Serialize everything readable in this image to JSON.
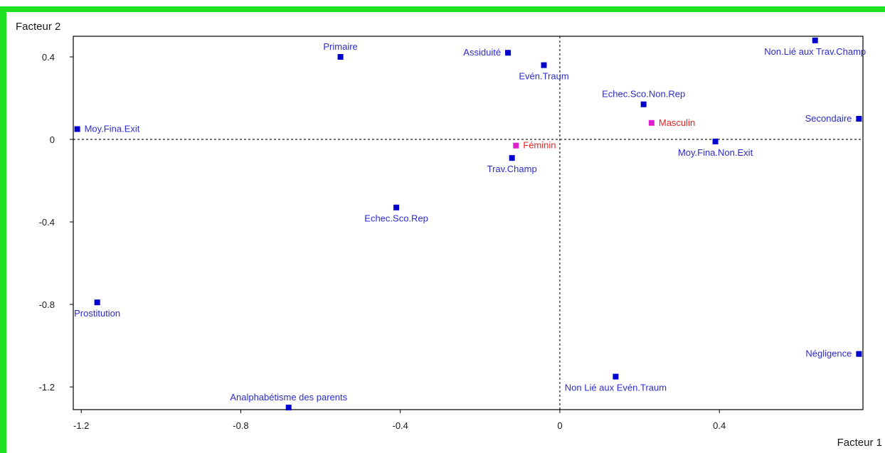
{
  "colors": {
    "frame": "#1ee01e",
    "axis": "#000000",
    "point_active": "#0000cc",
    "label_active": "#2b2bd0",
    "point_supplementary": "#e020d0",
    "label_supplementary": "#ee2222"
  },
  "chart_data": {
    "type": "scatter",
    "xlabel": "Facteur 1",
    "ylabel": "Facteur 2",
    "xlim": [
      -1.22,
      0.76
    ],
    "ylim": [
      -1.31,
      0.5
    ],
    "xticks": [
      "-1.2",
      "-0.8",
      "-0.4",
      "0",
      "0.4"
    ],
    "xtick_values": [
      -1.2,
      -0.8,
      -0.4,
      0,
      0.4
    ],
    "yticks": [
      "0.4",
      "0",
      "-0.4",
      "-0.8",
      "-1.2"
    ],
    "ytick_values": [
      0.4,
      0,
      -0.4,
      -0.8,
      -1.2
    ],
    "reference_lines": "dashed lines at x=0 and y=0",
    "points": [
      {
        "label": "Primaire",
        "x": -0.55,
        "y": 0.4,
        "group": "active",
        "anchor": "above"
      },
      {
        "label": "Assiduité",
        "x": -0.13,
        "y": 0.42,
        "group": "active",
        "anchor": "left"
      },
      {
        "label": "Evén.Traum",
        "x": -0.04,
        "y": 0.36,
        "group": "active",
        "anchor": "below"
      },
      {
        "label": "Non.Lié aux Trav.Champ",
        "x": 0.64,
        "y": 0.48,
        "group": "active",
        "anchor": "below"
      },
      {
        "label": "Echec.Sco.Non.Rep",
        "x": 0.21,
        "y": 0.17,
        "group": "active",
        "anchor": "above"
      },
      {
        "label": "Masculin",
        "x": 0.23,
        "y": 0.08,
        "group": "supplementary",
        "anchor": "right"
      },
      {
        "label": "Secondaire",
        "x": 0.75,
        "y": 0.1,
        "group": "active",
        "anchor": "left"
      },
      {
        "label": "Moy.Fina.Exit",
        "x": -1.21,
        "y": 0.05,
        "group": "active",
        "anchor": "right"
      },
      {
        "label": "Moy.Fina.Non.Exit",
        "x": 0.39,
        "y": -0.01,
        "group": "active",
        "anchor": "below"
      },
      {
        "label": "Féminin",
        "x": -0.11,
        "y": -0.03,
        "group": "supplementary",
        "anchor": "right"
      },
      {
        "label": "Trav.Champ",
        "x": -0.12,
        "y": -0.09,
        "group": "active",
        "anchor": "below"
      },
      {
        "label": "Echec.Sco.Rep",
        "x": -0.41,
        "y": -0.33,
        "group": "active",
        "anchor": "below"
      },
      {
        "label": "Prostitution",
        "x": -1.16,
        "y": -0.79,
        "group": "active",
        "anchor": "below"
      },
      {
        "label": "Négligence",
        "x": 0.75,
        "y": -1.04,
        "group": "active",
        "anchor": "left"
      },
      {
        "label": "Non Lié aux Evén.Traum",
        "x": 0.14,
        "y": -1.15,
        "group": "active",
        "anchor": "below"
      },
      {
        "label": "Analphabétisme des parents",
        "x": -0.68,
        "y": -1.3,
        "group": "active",
        "anchor": "above"
      }
    ]
  }
}
